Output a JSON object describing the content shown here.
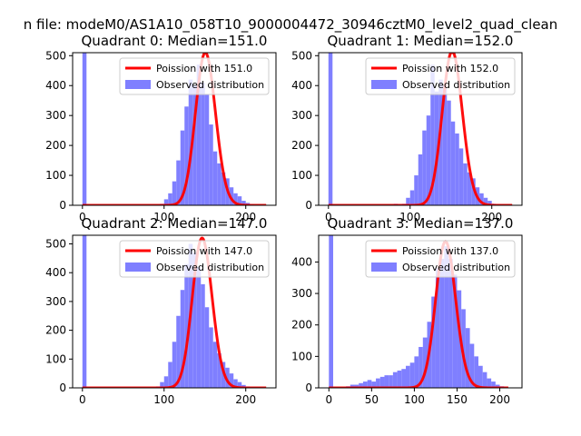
{
  "figure_title": "n file: modeM0/AS1A10_058T10_9000004472_30946cztM0_level2_quad_clean",
  "colors": {
    "poisson": "#ff0000",
    "hist": "#7f7fff"
  },
  "chart_data": [
    {
      "type": "bar",
      "title": "Quadrant 0: Median=151.0",
      "median": 151.0,
      "xlim": [
        -12,
        237
      ],
      "ylim": [
        0,
        510
      ],
      "xticks": [
        0,
        100,
        200
      ],
      "yticks": [
        0,
        100,
        200,
        300,
        400,
        500
      ],
      "legend": {
        "location": "top-right",
        "entries": [
          "Poission with 151.0",
          "Observed distribution"
        ]
      },
      "bin_width": 5.0,
      "bins": [
        [
          0,
          520
        ],
        [
          95,
          5
        ],
        [
          100,
          20
        ],
        [
          105,
          40
        ],
        [
          110,
          80
        ],
        [
          115,
          150
        ],
        [
          120,
          250
        ],
        [
          125,
          330
        ],
        [
          130,
          420
        ],
        [
          135,
          400
        ],
        [
          140,
          470
        ],
        [
          145,
          410
        ],
        [
          150,
          370
        ],
        [
          155,
          270
        ],
        [
          160,
          180
        ],
        [
          165,
          140
        ],
        [
          170,
          110
        ],
        [
          175,
          90
        ],
        [
          180,
          60
        ],
        [
          185,
          40
        ],
        [
          190,
          30
        ],
        [
          195,
          15
        ],
        [
          200,
          8
        ],
        [
          205,
          4
        ]
      ],
      "poisson_curve": {
        "mean": 151.0,
        "peak": 510,
        "x_range": [
          0,
          225
        ]
      }
    },
    {
      "type": "bar",
      "title": "Quadrant 1: Median=152.0",
      "median": 152.0,
      "xlim": [
        -12,
        237
      ],
      "ylim": [
        0,
        510
      ],
      "xticks": [
        0,
        100,
        200
      ],
      "yticks": [
        0,
        100,
        200,
        300,
        400,
        500
      ],
      "legend": {
        "location": "top-right",
        "entries": [
          "Poission with 152.0",
          "Observed distribution"
        ]
      },
      "bin_width": 5.0,
      "bins": [
        [
          0,
          520
        ],
        [
          80,
          5
        ],
        [
          90,
          5
        ],
        [
          95,
          25
        ],
        [
          100,
          50
        ],
        [
          105,
          100
        ],
        [
          110,
          170
        ],
        [
          115,
          250
        ],
        [
          120,
          300
        ],
        [
          125,
          470
        ],
        [
          130,
          380
        ],
        [
          135,
          420
        ],
        [
          140,
          400
        ],
        [
          145,
          350
        ],
        [
          150,
          280
        ],
        [
          155,
          240
        ],
        [
          160,
          190
        ],
        [
          165,
          140
        ],
        [
          170,
          110
        ],
        [
          175,
          90
        ],
        [
          180,
          60
        ],
        [
          185,
          40
        ],
        [
          190,
          25
        ],
        [
          195,
          15
        ],
        [
          200,
          5
        ]
      ],
      "poisson_curve": {
        "mean": 152.0,
        "peak": 515,
        "x_range": [
          0,
          225
        ]
      }
    },
    {
      "type": "bar",
      "title": "Quadrant 2: Median=147.0",
      "median": 147.0,
      "xlim": [
        -12,
        237
      ],
      "ylim": [
        0,
        530
      ],
      "xticks": [
        0,
        100,
        200
      ],
      "yticks": [
        0,
        100,
        200,
        300,
        400,
        500
      ],
      "legend": {
        "location": "top-right",
        "entries": [
          "Poission with 147.0",
          "Observed distribution"
        ]
      },
      "bin_width": 5.0,
      "bins": [
        [
          0,
          530
        ],
        [
          90,
          5
        ],
        [
          95,
          20
        ],
        [
          100,
          40
        ],
        [
          105,
          90
        ],
        [
          110,
          160
        ],
        [
          115,
          250
        ],
        [
          120,
          340
        ],
        [
          125,
          430
        ],
        [
          130,
          500
        ],
        [
          135,
          470
        ],
        [
          140,
          420
        ],
        [
          145,
          360
        ],
        [
          150,
          280
        ],
        [
          155,
          210
        ],
        [
          160,
          160
        ],
        [
          165,
          120
        ],
        [
          170,
          90
        ],
        [
          175,
          70
        ],
        [
          180,
          50
        ],
        [
          185,
          30
        ],
        [
          190,
          20
        ],
        [
          195,
          10
        ],
        [
          200,
          5
        ]
      ],
      "poisson_curve": {
        "mean": 147.0,
        "peak": 520,
        "x_range": [
          0,
          225
        ]
      }
    },
    {
      "type": "bar",
      "title": "Quadrant 3: Median=137.0",
      "median": 137.0,
      "xlim": [
        -12,
        226
      ],
      "ylim": [
        0,
        485
      ],
      "xticks": [
        0,
        50,
        100,
        150,
        200
      ],
      "yticks": [
        0,
        100,
        200,
        300,
        400
      ],
      "legend": {
        "location": "top-right",
        "entries": [
          "Poission with 137.0",
          "Observed distribution"
        ]
      },
      "bin_width": 5.0,
      "bins": [
        [
          0,
          490
        ],
        [
          20,
          5
        ],
        [
          25,
          10
        ],
        [
          30,
          10
        ],
        [
          35,
          15
        ],
        [
          40,
          20
        ],
        [
          45,
          25
        ],
        [
          50,
          20
        ],
        [
          55,
          30
        ],
        [
          60,
          35
        ],
        [
          65,
          40
        ],
        [
          70,
          40
        ],
        [
          75,
          50
        ],
        [
          80,
          55
        ],
        [
          85,
          60
        ],
        [
          90,
          70
        ],
        [
          95,
          80
        ],
        [
          100,
          100
        ],
        [
          105,
          130
        ],
        [
          110,
          160
        ],
        [
          115,
          210
        ],
        [
          120,
          290
        ],
        [
          125,
          380
        ],
        [
          130,
          410
        ],
        [
          135,
          450
        ],
        [
          140,
          410
        ],
        [
          145,
          360
        ],
        [
          150,
          310
        ],
        [
          155,
          250
        ],
        [
          160,
          190
        ],
        [
          165,
          140
        ],
        [
          170,
          100
        ],
        [
          175,
          70
        ],
        [
          180,
          50
        ],
        [
          185,
          30
        ],
        [
          190,
          20
        ],
        [
          195,
          10
        ],
        [
          200,
          5
        ]
      ],
      "poisson_curve": {
        "mean": 137.0,
        "peak": 465,
        "x_range": [
          0,
          210
        ]
      }
    }
  ]
}
